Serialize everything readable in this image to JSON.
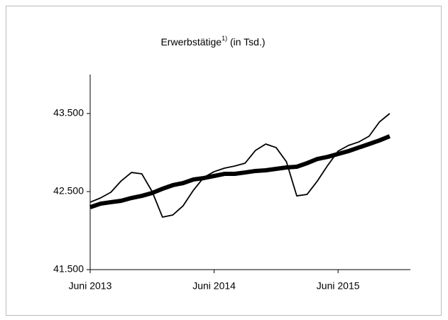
{
  "chart_data": {
    "type": "line",
    "title": [
      "Erwerbstätige",
      "1)",
      " (in Tsd.)"
    ],
    "categories": [
      "Juni 2013",
      null,
      null,
      null,
      null,
      null,
      null,
      null,
      null,
      null,
      null,
      null,
      "Juni 2014",
      null,
      null,
      null,
      null,
      null,
      null,
      null,
      null,
      null,
      null,
      null,
      "Juni 2015",
      null,
      null,
      null,
      null,
      null
    ],
    "series": [
      {
        "color": "#000000",
        "line_width": 1.8,
        "values": [
          42364,
          42418,
          42491,
          42636,
          42745,
          42727,
          42500,
          42173,
          42200,
          42318,
          42518,
          42682,
          42755,
          42800,
          42827,
          42864,
          43027,
          43109,
          43064,
          42882,
          42445,
          42464,
          42636,
          42836,
          43018,
          43091,
          43136,
          43209,
          43391,
          43500
        ]
      },
      {
        "color": "#000000",
        "line_width": 6,
        "values": [
          42300,
          42345,
          42364,
          42382,
          42418,
          42445,
          42482,
          42536,
          42582,
          42609,
          42655,
          42673,
          42700,
          42727,
          42727,
          42745,
          42764,
          42773,
          42791,
          42809,
          42818,
          42864,
          42918,
          42945,
          42982,
          43018,
          43064,
          43109,
          43155,
          43209
        ]
      }
    ],
    "ylim": [
      41500,
      44000
    ],
    "yticks": [
      {
        "value": 41500,
        "label": "41.500"
      },
      {
        "value": 42500,
        "label": "42.500"
      },
      {
        "value": 43500,
        "label": "43.500"
      }
    ],
    "grid": false
  }
}
